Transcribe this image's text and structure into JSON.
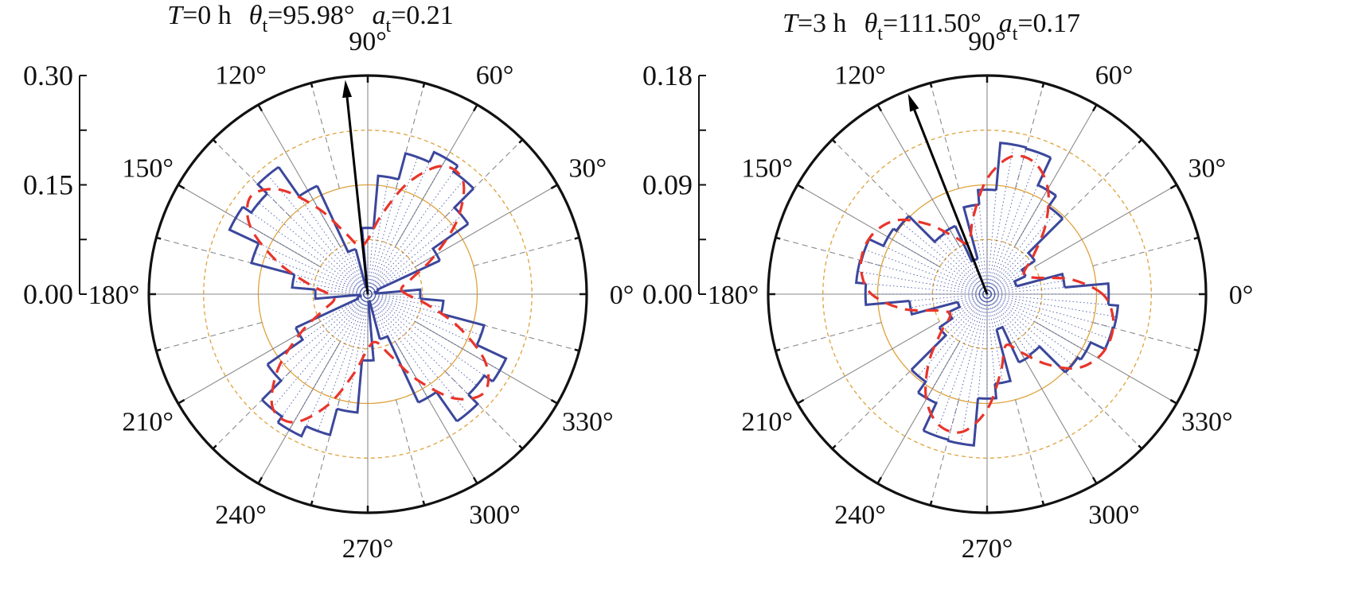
{
  "colors": {
    "histogram": "#3b479c",
    "fit_curve": "#e8352b",
    "grid_circle": "#dea23c",
    "grid_line": "#8a8a8a",
    "bin_line": "#4a5aa8",
    "axis": "#111111"
  },
  "chart_data": [
    {
      "type": "polar-histogram",
      "title": {
        "T": "T",
        "T_value": "=0 h",
        "theta": "θ",
        "theta_sub": "t",
        "theta_value": "=95.98°",
        "a": "a",
        "a_sub": "t",
        "a_value": "=0.21"
      },
      "theta_t": 95.98,
      "a_t": 0.21,
      "rlim": [
        0,
        0.3
      ],
      "radial_ticks": [
        0.0,
        0.075,
        0.15,
        0.225,
        0.3
      ],
      "radial_tick_labels": [
        "0.00",
        "0.15",
        "0.30"
      ],
      "angle_tick_labels": [
        "0°",
        "30°",
        "60°",
        "90°",
        "120°",
        "150°",
        "180°",
        "210°",
        "240°",
        "270°",
        "300°",
        "330°"
      ],
      "bin_width_deg": 10,
      "bin_centers_deg": [
        0,
        10,
        20,
        30,
        40,
        50,
        60,
        70,
        80,
        90,
        100,
        110,
        120,
        130,
        140,
        150,
        160,
        170
      ],
      "histogram_values": [
        0.072,
        0.01,
        0.015,
        0.109,
        0.168,
        0.205,
        0.215,
        0.2,
        0.163,
        0.091,
        0.01,
        0.064,
        0.164,
        0.213,
        0.195,
        0.209,
        0.165,
        0.104
      ],
      "fit_values": [
        0.053,
        0.047,
        0.065,
        0.106,
        0.161,
        0.203,
        0.203,
        0.163,
        0.111,
        0.075,
        0.067,
        0.089,
        0.136,
        0.187,
        0.209,
        0.186,
        0.133,
        0.083
      ],
      "symmetry": "axial (values repeat every 180°)"
    },
    {
      "type": "polar-histogram",
      "title": {
        "T": "T",
        "T_value": "=3 h",
        "theta": "θ",
        "theta_sub": "t",
        "theta_value": "=111.50°",
        "a": "a",
        "a_sub": "t",
        "a_value": "=0.17"
      },
      "theta_t": 111.5,
      "a_t": 0.17,
      "rlim": [
        0,
        0.18
      ],
      "radial_ticks": [
        0.0,
        0.045,
        0.09,
        0.135,
        0.18
      ],
      "radial_tick_labels": [
        "0.00",
        "0.09",
        "0.18"
      ],
      "angle_tick_labels": [
        "0°",
        "30°",
        "60°",
        "90°",
        "120°",
        "150°",
        "180°",
        "210°",
        "240°",
        "270°",
        "300°",
        "330°"
      ],
      "bin_width_deg": 10,
      "bin_centers_deg": [
        0,
        10,
        20,
        30,
        40,
        50,
        60,
        70,
        80,
        90,
        100,
        110,
        120,
        130,
        140,
        150,
        160,
        170
      ],
      "histogram_values": [
        0.1,
        0.064,
        0.025,
        0.035,
        0.048,
        0.088,
        0.099,
        0.124,
        0.125,
        0.086,
        0.074,
        0.03,
        0.062,
        0.061,
        0.091,
        0.094,
        0.107,
        0.108
      ],
      "fit_values": [
        0.095,
        0.07,
        0.04,
        0.035,
        0.05,
        0.075,
        0.1,
        0.115,
        0.115,
        0.095,
        0.065,
        0.045,
        0.055,
        0.075,
        0.095,
        0.105,
        0.108,
        0.105
      ],
      "symmetry": "axial (values repeat every 180°)"
    }
  ]
}
